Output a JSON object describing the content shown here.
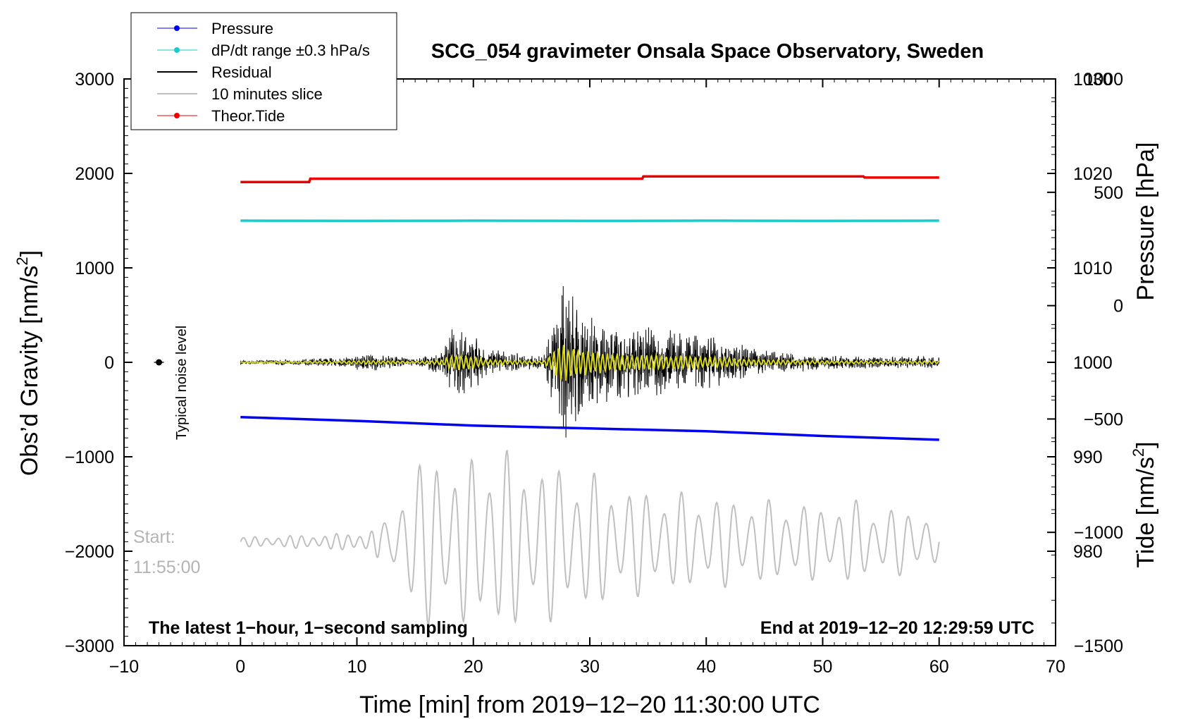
{
  "chart_data": {
    "type": "line",
    "title": "SCG_054 gravimeter Onsala Space Observatory, Sweden",
    "xlabel": "Time [min] from 2019−12−20 11:30:00 UTC",
    "ylabel_left_main": "Obs’d Gravity [nm/s",
    "ylabel_left_sup": "2",
    "ylabel_left_end": "]",
    "ylabel_right_top": "Pressure [hPa]",
    "ylabel_right_bottom_main": "Tide [nm/s",
    "ylabel_right_bottom_sup": "2",
    "ylabel_right_bottom_end": "]",
    "xlim": [
      -10,
      70
    ],
    "ylim": [
      -3000,
      3000
    ],
    "pressure_lim": [
      970,
      1030
    ],
    "tide_lim": [
      -1500,
      1000
    ],
    "x_ticks": [
      "−10",
      "0",
      "10",
      "20",
      "30",
      "40",
      "50",
      "60",
      "70"
    ],
    "y_ticks": [
      "3000",
      "2000",
      "1000",
      "0",
      "−1000",
      "−2000",
      "−3000"
    ],
    "pressure_ticks": [
      "1030",
      "1020",
      "1010",
      "1000",
      "990",
      "980"
    ],
    "tide_ticks": [
      "1000",
      "500",
      "0",
      "−500",
      "−1000",
      "−1500"
    ],
    "legend": {
      "position": "top-left",
      "entries": [
        {
          "label": "Pressure",
          "color": "#0000ee",
          "marker": true
        },
        {
          "label": "dP/dt range ±0.3 hPa/s",
          "color": "#1ccbcb",
          "marker": true
        },
        {
          "label": "Residual",
          "color": "#000000",
          "marker": false
        },
        {
          "label": "10 minutes slice",
          "color": "#c0c0c0",
          "marker": false
        },
        {
          "label": "Theor.Tide",
          "color": "#ee0000",
          "marker": true
        }
      ]
    },
    "annotations": {
      "noise_label": "Typical noise level",
      "start_label": "Start:",
      "start_time": "11:55:00",
      "bottom_left": "The latest 1−hour, 1−second sampling",
      "bottom_right": "End at 2019−12−20 12:29:59 UTC"
    },
    "noise_marker": {
      "x": -7,
      "y": 0
    },
    "series": [
      {
        "name": "dP/dt range (plotted on gravity axis)",
        "color": "#1ccbcb",
        "x": [
          0,
          10,
          20,
          30,
          40,
          50,
          60
        ],
        "y": [
          1500,
          1498,
          1500,
          1498,
          1500,
          1498,
          1500
        ]
      },
      {
        "name": "Pressure",
        "color": "#0000ee",
        "axis": "pressure",
        "x": [
          0,
          10,
          20,
          30,
          40,
          50,
          60
        ],
        "y": [
          994.2,
          993.8,
          993.3,
          993.0,
          992.7,
          992.2,
          991.8
        ]
      },
      {
        "name": "Theor.Tide",
        "color": "#ee0000",
        "axis": "tide",
        "x": [
          0,
          5.9,
          6,
          34.5,
          34.6,
          53.5,
          53.6,
          60
        ],
        "y": [
          545,
          545,
          560,
          560,
          570,
          570,
          565,
          565
        ]
      }
    ],
    "residual_envelope": {
      "x": [
        0,
        5,
        9,
        11,
        15,
        17.5,
        18,
        20,
        21,
        26,
        27,
        27.5,
        28,
        28.5,
        29,
        30,
        32,
        34,
        36,
        38,
        40,
        42,
        45,
        50,
        55,
        60
      ],
      "amp": [
        20,
        35,
        60,
        100,
        40,
        150,
        400,
        350,
        150,
        60,
        600,
        1100,
        900,
        800,
        700,
        600,
        450,
        380,
        370,
        320,
        300,
        230,
        130,
        80,
        60,
        70
      ]
    },
    "slice_envelope": {
      "x": [
        0,
        5,
        9,
        11,
        13,
        14,
        16,
        16.9,
        18,
        20,
        22,
        24,
        27,
        30,
        33,
        36,
        40,
        45,
        50,
        53,
        55,
        58,
        60
      ],
      "amp": [
        50,
        70,
        90,
        120,
        250,
        700,
        900,
        1150,
        750,
        950,
        1050,
        900,
        850,
        750,
        600,
        550,
        500,
        450,
        400,
        450,
        350,
        380,
        200
      ]
    }
  }
}
